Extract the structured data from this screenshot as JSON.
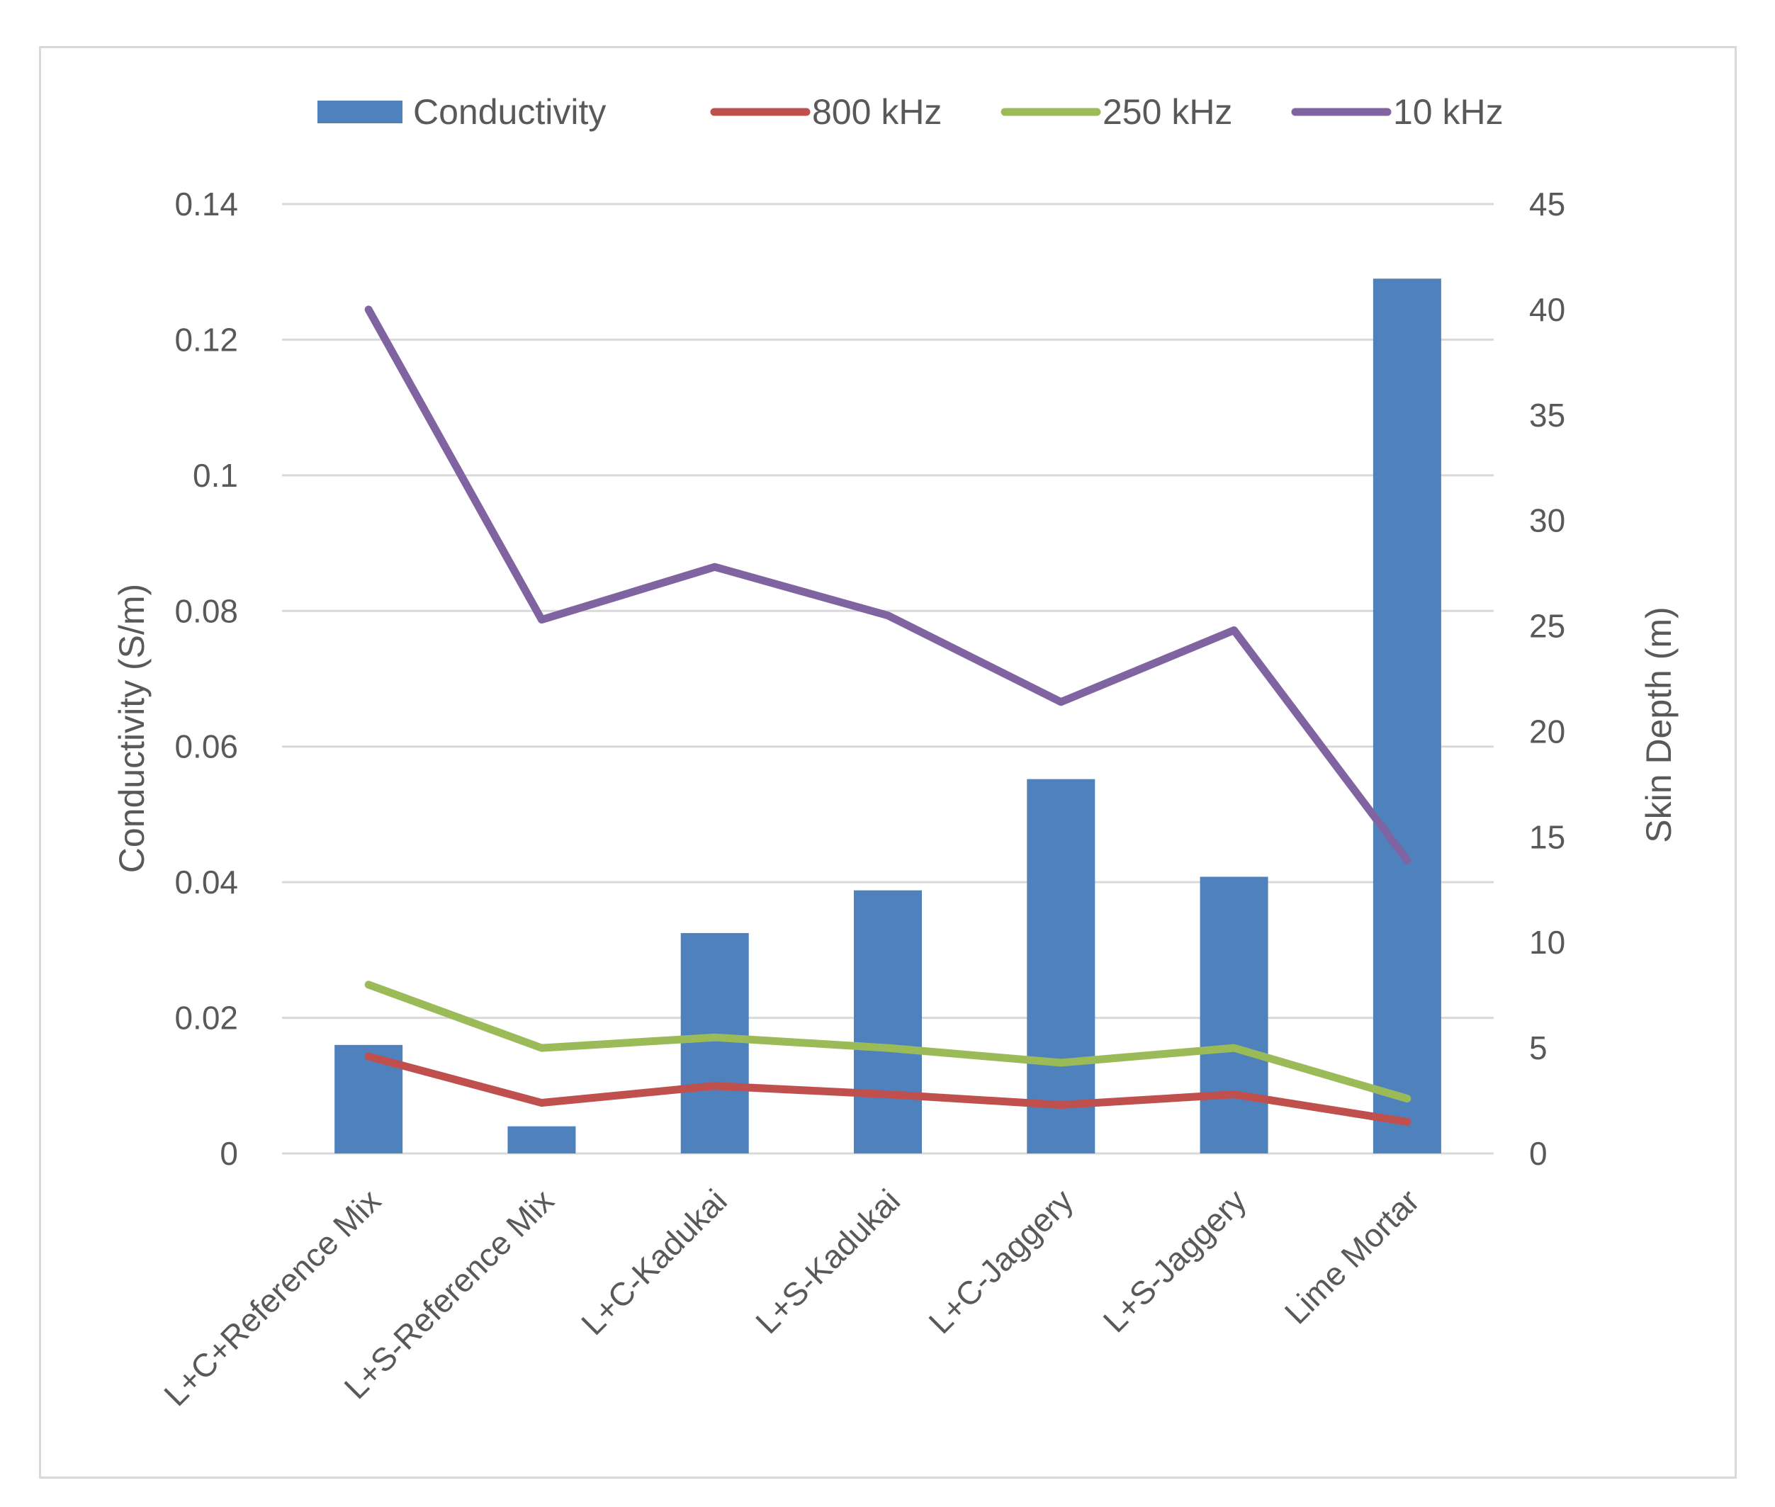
{
  "chart_data": {
    "type": "bar+line",
    "categories": [
      "L+C+Reference Mix",
      "L+S-Reference Mix",
      "L+C-Kadukai",
      "L+S-Kadukai",
      "L+C-Jaggery",
      "L+S-Jaggery",
      "Lime Mortar"
    ],
    "left_axis": {
      "label": "Conductivity (S/m)",
      "range": [
        0,
        0.14
      ],
      "ticks": [
        "0",
        "0.02",
        "0.04",
        "0.06",
        "0.08",
        "0.1",
        "0.12",
        "0.14"
      ]
    },
    "right_axis": {
      "label": "Skin Depth  (m)",
      "range": [
        0,
        45
      ],
      "ticks": [
        "0",
        "5",
        "10",
        "15",
        "20",
        "25",
        "30",
        "35",
        "40",
        "45"
      ]
    },
    "series": [
      {
        "name": "Conductivity",
        "kind": "bar",
        "axis": "left",
        "color": "#4f81bd",
        "values": [
          0.016,
          0.004,
          0.0325,
          0.0388,
          0.0552,
          0.0408,
          0.129
        ]
      },
      {
        "name": "800 kHz",
        "kind": "line",
        "axis": "right",
        "color": "#c0504d",
        "values": [
          4.6,
          2.4,
          3.2,
          2.8,
          2.3,
          2.8,
          1.5
        ]
      },
      {
        "name": "250 kHz",
        "kind": "line",
        "axis": "right",
        "color": "#9bbb59",
        "values": [
          8.0,
          5.0,
          5.5,
          5.0,
          4.3,
          5.0,
          2.6
        ]
      },
      {
        "name": "10 kHz",
        "kind": "line",
        "axis": "right",
        "color": "#8064a2",
        "values": [
          40.0,
          25.3,
          27.8,
          25.5,
          21.4,
          24.8,
          13.9
        ]
      }
    ],
    "legend_position": "top",
    "gridlines": true
  }
}
